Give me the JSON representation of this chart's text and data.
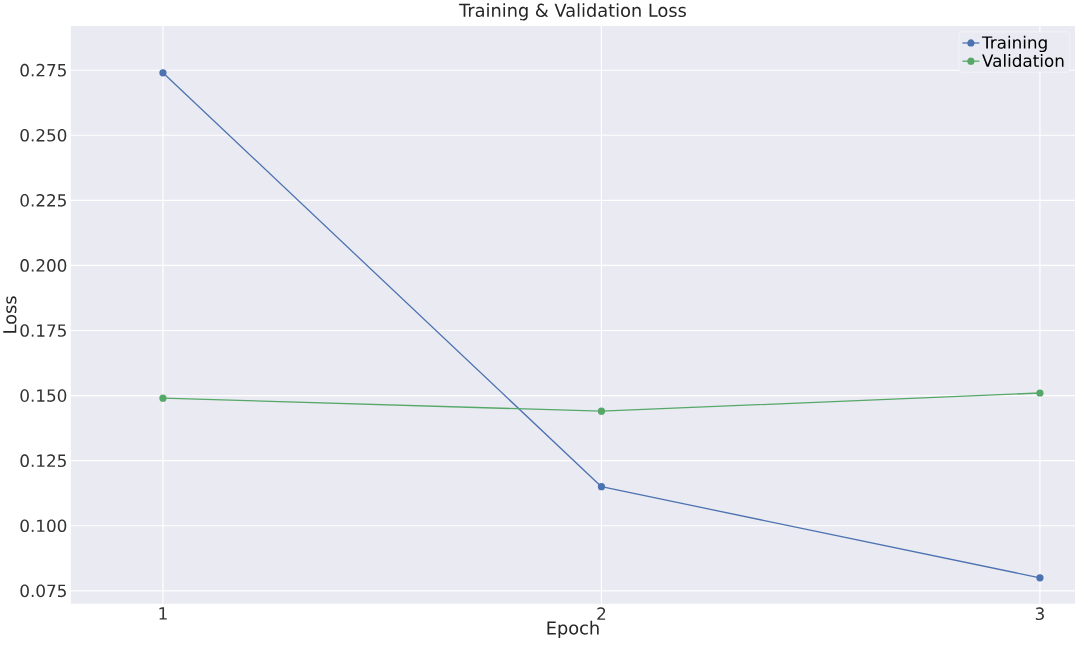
{
  "chart_data": {
    "type": "line",
    "title": "Training & Validation Loss",
    "xlabel": "Epoch",
    "ylabel": "Loss",
    "x": [
      1,
      2,
      3
    ],
    "series": [
      {
        "name": "Training",
        "color": "#4c72b0",
        "values": [
          0.274,
          0.115,
          0.08
        ]
      },
      {
        "name": "Validation",
        "color": "#55a868",
        "values": [
          0.149,
          0.144,
          0.151
        ]
      }
    ],
    "xlim": [
      0.79,
      3.08
    ],
    "ylim": [
      0.07,
      0.292
    ],
    "xticks": [
      1,
      2,
      3
    ],
    "yticks": [
      {
        "value": 0.075,
        "label": "0.075"
      },
      {
        "value": 0.1,
        "label": "0.100"
      },
      {
        "value": 0.125,
        "label": "0.125"
      },
      {
        "value": 0.15,
        "label": "0.150"
      },
      {
        "value": 0.175,
        "label": "0.175"
      },
      {
        "value": 0.2,
        "label": "0.200"
      },
      {
        "value": 0.225,
        "label": "0.225"
      },
      {
        "value": 0.25,
        "label": "0.250"
      },
      {
        "value": 0.275,
        "label": "0.275"
      }
    ],
    "grid": true,
    "legend": "top right",
    "marker": "circle",
    "line_style": "solid"
  }
}
